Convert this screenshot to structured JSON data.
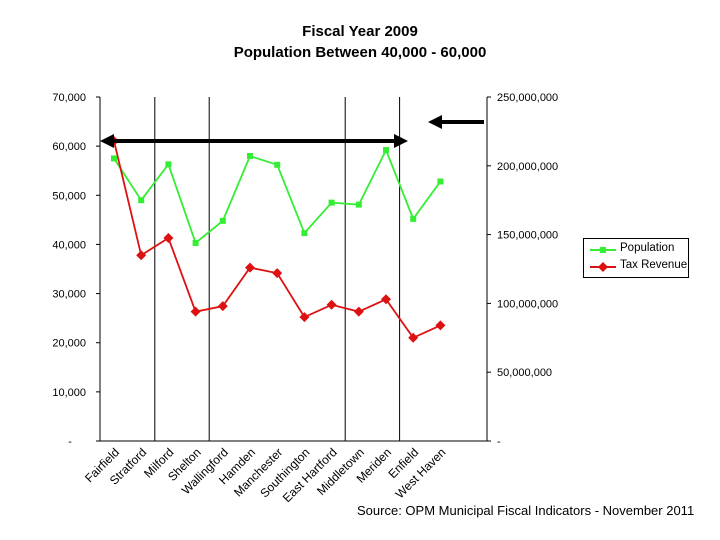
{
  "title": "Fiscal Year 2009",
  "subtitle": "Population Between 40,000 - 60,000",
  "source_note": "Source: OPM Municipal Fiscal Indicators - November 2011",
  "colors": {
    "population": "#33ee33",
    "tax_revenue": "#dd1111",
    "axis": "#000000",
    "arrow": "#000000"
  },
  "chart_data": {
    "type": "line",
    "categories": [
      "Fairfield",
      "Stratford",
      "Milford",
      "Shelton",
      "Wallingford",
      "Hamden",
      "Manchester",
      "Southington",
      "East Hartford",
      "Middletown",
      "Meriden",
      "Enfield",
      "West Haven"
    ],
    "series": [
      {
        "name": "Population",
        "axis": "left",
        "values": [
          57500,
          49000,
          56300,
          40300,
          44800,
          58000,
          56200,
          42300,
          48500,
          48100,
          59200,
          45200,
          52800
        ]
      },
      {
        "name": "Tax Revenue",
        "axis": "right",
        "values": [
          218000000,
          135000000,
          147500000,
          94000000,
          98000000,
          126000000,
          122000000,
          90000000,
          99000000,
          94000000,
          103000000,
          75000000,
          84000000
        ]
      }
    ],
    "y_left": {
      "ylim": [
        0,
        70000
      ],
      "ticks": [
        "-",
        "10,000",
        "20,000",
        "30,000",
        "40,000",
        "50,000",
        "60,000",
        "70,000"
      ]
    },
    "y_right": {
      "ylim": [
        0,
        250000000
      ],
      "ticks": [
        "-",
        "50,000,000",
        "100,000,000",
        "150,000,000",
        "200,000,000",
        "250,000,000"
      ]
    },
    "vertical_lines_after": [
      "Stratford",
      "Shelton",
      "East Hartford",
      "Meriden"
    ],
    "annotations": [
      "double-headed arrow across top of plot",
      "left-pointing arrow at right axis near 215,000,000"
    ],
    "legend_position": "right",
    "grid": false
  }
}
